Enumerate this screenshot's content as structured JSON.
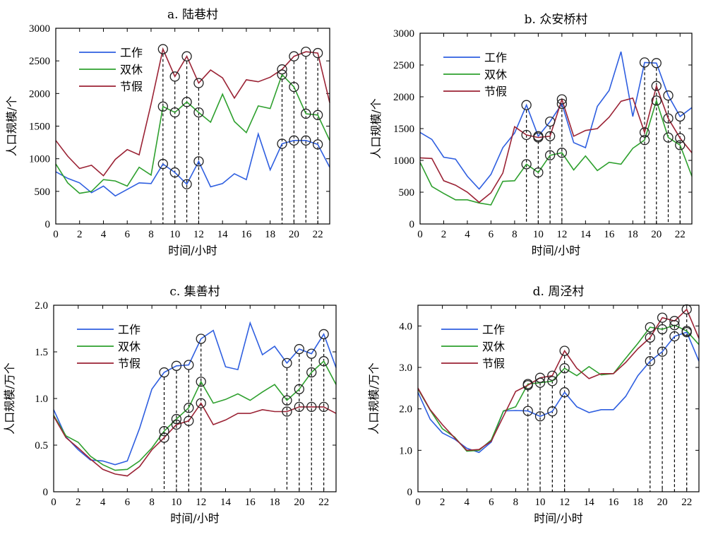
{
  "colors": {
    "工作": "#2f5fe0",
    "双休": "#2ea02e",
    "节假": "#9b2335"
  },
  "chart_data": [
    {
      "type": "line",
      "title": "a. 陆巷村",
      "xlabel": "时间/小时",
      "ylabel": "人口规模/个",
      "xlim": [
        0,
        23
      ],
      "ylim": [
        0,
        3000
      ],
      "xticks": [
        0,
        2,
        4,
        6,
        8,
        10,
        12,
        14,
        16,
        18,
        20,
        22
      ],
      "yticks": [
        0,
        500,
        1000,
        1500,
        2000,
        2500,
        3000
      ],
      "ytick_labels": [
        "0",
        "500",
        "1000",
        "1500",
        "2000",
        "2500",
        "3000"
      ],
      "legend": "top-left",
      "x": [
        0,
        1,
        2,
        3,
        4,
        5,
        6,
        7,
        8,
        9,
        10,
        11,
        12,
        13,
        14,
        15,
        16,
        17,
        18,
        19,
        20,
        21,
        22,
        23
      ],
      "series": [
        {
          "name": "工作",
          "values": [
            800,
            700,
            630,
            480,
            580,
            430,
            530,
            630,
            620,
            920,
            790,
            610,
            960,
            570,
            620,
            770,
            680,
            1380,
            830,
            1230,
            1280,
            1280,
            1220,
            870
          ]
        },
        {
          "name": "双休",
          "values": [
            920,
            630,
            470,
            500,
            680,
            660,
            580,
            870,
            750,
            1800,
            1710,
            1870,
            1710,
            1560,
            1990,
            1570,
            1400,
            1810,
            1770,
            2290,
            2100,
            1690,
            1670,
            1280
          ]
        },
        {
          "name": "节假",
          "values": [
            1280,
            1040,
            850,
            900,
            740,
            990,
            1140,
            1060,
            1840,
            2680,
            2260,
            2570,
            2160,
            2360,
            2240,
            1930,
            2210,
            2180,
            2250,
            2370,
            2570,
            2640,
            2620,
            1860
          ]
        }
      ],
      "marked_hours": [
        9,
        10,
        11,
        12,
        19,
        20,
        21,
        22
      ]
    },
    {
      "type": "line",
      "title": "b. 众安桥村",
      "xlabel": "时间/小时",
      "ylabel": "人口规模/个",
      "xlim": [
        0,
        23
      ],
      "ylim": [
        0,
        3000
      ],
      "xticks": [
        0,
        2,
        4,
        6,
        8,
        10,
        12,
        14,
        16,
        18,
        20,
        22
      ],
      "yticks": [
        0,
        500,
        1000,
        1500,
        2000,
        2500,
        3000
      ],
      "ytick_labels": [
        "0",
        "500",
        "1000",
        "1500",
        "2000",
        "2500",
        "3000"
      ],
      "legend": "top-left",
      "x": [
        0,
        1,
        2,
        3,
        4,
        5,
        6,
        7,
        8,
        9,
        10,
        11,
        12,
        13,
        14,
        15,
        16,
        17,
        18,
        19,
        20,
        21,
        22,
        23
      ],
      "series": [
        {
          "name": "工作",
          "values": [
            1440,
            1330,
            1050,
            1020,
            750,
            550,
            780,
            1200,
            1430,
            1870,
            1380,
            1610,
            1890,
            1280,
            1200,
            1850,
            2100,
            2710,
            1690,
            2540,
            2530,
            2020,
            1690,
            1830
          ]
        },
        {
          "name": "双休",
          "values": [
            970,
            590,
            480,
            380,
            380,
            330,
            300,
            670,
            680,
            940,
            810,
            1080,
            1120,
            850,
            1070,
            840,
            970,
            940,
            1190,
            1320,
            1940,
            1360,
            1240,
            750
          ]
        },
        {
          "name": "节假",
          "values": [
            1040,
            1030,
            680,
            610,
            500,
            340,
            490,
            800,
            1530,
            1400,
            1360,
            1380,
            1960,
            1380,
            1470,
            1500,
            1680,
            1930,
            1980,
            1440,
            2170,
            1660,
            1350,
            1120
          ]
        }
      ],
      "marked_hours": [
        9,
        10,
        11,
        12,
        19,
        20,
        21,
        22
      ]
    },
    {
      "type": "line",
      "title": "c. 集善村",
      "xlabel": "时间/小时",
      "ylabel": "人口规模/万个",
      "xlim": [
        0,
        23
      ],
      "ylim": [
        0,
        2.0
      ],
      "xticks": [
        0,
        2,
        4,
        6,
        8,
        10,
        12,
        14,
        16,
        18,
        20,
        22
      ],
      "yticks": [
        0,
        0.5,
        1.0,
        1.5,
        2.0
      ],
      "ytick_labels": [
        "0",
        "0.5",
        "1.0",
        "1.5",
        "2.0"
      ],
      "legend": "top-left",
      "x": [
        0,
        1,
        2,
        3,
        4,
        5,
        6,
        7,
        8,
        9,
        10,
        11,
        12,
        13,
        14,
        15,
        16,
        17,
        18,
        19,
        20,
        21,
        22,
        23
      ],
      "series": [
        {
          "name": "工作",
          "values": [
            0.88,
            0.59,
            0.45,
            0.34,
            0.33,
            0.29,
            0.33,
            0.68,
            1.1,
            1.28,
            1.35,
            1.36,
            1.64,
            1.73,
            1.34,
            1.31,
            1.81,
            1.47,
            1.56,
            1.38,
            1.53,
            1.48,
            1.69,
            1.33
          ]
        },
        {
          "name": "双休",
          "values": [
            0.82,
            0.6,
            0.53,
            0.38,
            0.29,
            0.23,
            0.24,
            0.33,
            0.47,
            0.65,
            0.78,
            0.9,
            1.18,
            0.95,
            0.99,
            1.05,
            0.98,
            1.07,
            1.15,
            0.98,
            1.1,
            1.28,
            1.4,
            1.15
          ]
        },
        {
          "name": "节假",
          "values": [
            0.81,
            0.58,
            0.47,
            0.35,
            0.24,
            0.19,
            0.17,
            0.27,
            0.45,
            0.58,
            0.72,
            0.76,
            0.95,
            0.72,
            0.77,
            0.84,
            0.84,
            0.88,
            0.86,
            0.86,
            0.91,
            0.91,
            0.91,
            0.84
          ]
        }
      ],
      "marked_hours": [
        9,
        10,
        11,
        12,
        19,
        20,
        21,
        22
      ]
    },
    {
      "type": "line",
      "title": "d. 周泾村",
      "xlabel": "时间/小时",
      "ylabel": "人口规模/万个",
      "xlim": [
        0,
        23
      ],
      "ylim": [
        0,
        4.5
      ],
      "xticks": [
        0,
        2,
        4,
        6,
        8,
        10,
        12,
        14,
        16,
        18,
        20,
        22
      ],
      "yticks": [
        0,
        1.0,
        2.0,
        3.0,
        4.0
      ],
      "ytick_labels": [
        "0",
        "1.0",
        "2.0",
        "3.0",
        "4.0"
      ],
      "legend": "top-left",
      "x": [
        0,
        1,
        2,
        3,
        4,
        5,
        6,
        7,
        8,
        9,
        10,
        11,
        12,
        13,
        14,
        15,
        16,
        17,
        18,
        19,
        20,
        21,
        22,
        23
      ],
      "series": [
        {
          "name": "工作",
          "values": [
            2.4,
            1.75,
            1.42,
            1.27,
            1.05,
            0.95,
            1.2,
            1.95,
            1.96,
            1.95,
            1.82,
            1.94,
            2.4,
            2.05,
            1.91,
            1.98,
            1.98,
            2.3,
            2.8,
            3.15,
            3.38,
            3.75,
            3.85,
            3.15
          ]
        },
        {
          "name": "双休",
          "values": [
            2.48,
            1.97,
            1.52,
            1.32,
            0.98,
            1.0,
            1.25,
            1.95,
            2.05,
            2.6,
            2.63,
            2.67,
            2.98,
            2.8,
            3.02,
            2.82,
            2.85,
            3.22,
            3.58,
            3.97,
            3.92,
            4.02,
            3.88,
            3.55
          ]
        },
        {
          "name": "节假",
          "values": [
            2.5,
            1.98,
            1.62,
            1.3,
            1.0,
            1.02,
            1.22,
            1.82,
            2.42,
            2.57,
            2.75,
            2.8,
            3.4,
            2.98,
            2.73,
            2.85,
            2.85,
            3.12,
            3.45,
            3.72,
            4.2,
            4.12,
            4.4,
            3.7
          ]
        }
      ],
      "marked_hours": [
        9,
        10,
        11,
        12,
        19,
        20,
        21,
        22
      ]
    }
  ]
}
